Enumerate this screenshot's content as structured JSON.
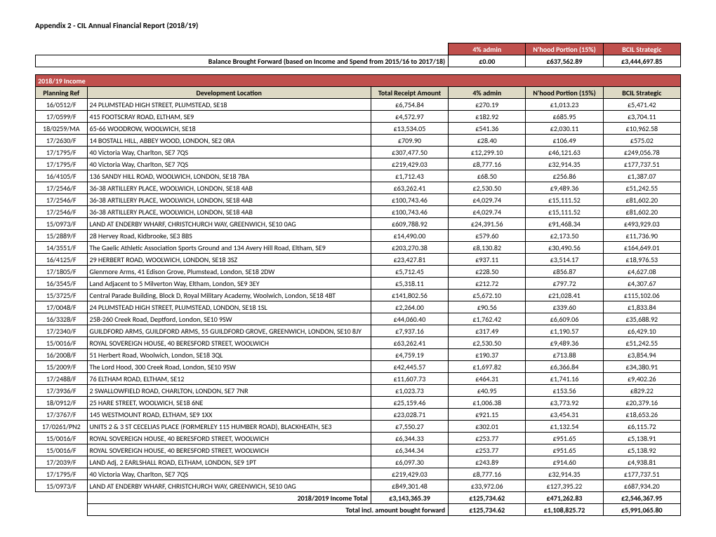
{
  "title": "Appendix 2  - CIL Annual Financial Report (2018/19)",
  "top_headers": {
    "admin": "4% admin",
    "nhood": "N'hood Portion (15%)",
    "bcil": "BCIL Strategic"
  },
  "bbf": {
    "label": "Balance Brought Forward (based on Income and Spend from 2015/16 to 2017/18)",
    "admin": "£0.00",
    "nhood": "£637,562.89",
    "bcil": "£3,444,697.85"
  },
  "section": "2018/19 Income",
  "col_headers": {
    "ref": "Planning Ref",
    "loc": "Development Location",
    "tra": "Total Receipt Amount",
    "admin": "4% admin",
    "nhood": "N'hood Portion (15%)",
    "bcil": "BCIL Strategic"
  },
  "rows": [
    {
      "ref": "16/0512/F",
      "loc": "24 PLUMSTEAD HIGH STREET, PLUMSTEAD, SE18",
      "tra": "£6,754.84",
      "admin": "£270.19",
      "nhood": "£1,013.23",
      "bcil": "£5,471.42"
    },
    {
      "ref": "17/0599/F",
      "loc": "415 FOOTSCRAY ROAD, ELTHAM, SE9",
      "tra": "£4,572.97",
      "admin": "£182.92",
      "nhood": "£685.95",
      "bcil": "£3,704.11"
    },
    {
      "ref": "18/0259/MA",
      "loc": "65-66 WOODROW, WOOLWICH, SE18",
      "tra": "£13,534.05",
      "admin": "£541.36",
      "nhood": "£2,030.11",
      "bcil": "£10,962.58"
    },
    {
      "ref": "17/2630/F",
      "loc": "14 BOSTALL HILL, ABBEY WOOD, LONDON, SE2 0RA",
      "tra": "£709.90",
      "admin": "£28.40",
      "nhood": "£106.49",
      "bcil": "£575.02"
    },
    {
      "ref": "17/1795/F",
      "loc": "40 Victoria Way, Charlton, SE7 7QS",
      "tra": "£307,477.50",
      "admin": "£12,299.10",
      "nhood": "£46,121.63",
      "bcil": "£249,056.78"
    },
    {
      "ref": "17/1795/F",
      "loc": "40 Victoria Way, Charlton, SE7 7QS",
      "tra": "£219,429.03",
      "admin": "£8,777.16",
      "nhood": "£32,914.35",
      "bcil": "£177,737.51"
    },
    {
      "ref": "16/4105/F",
      "loc": "136 SANDY HILL ROAD, WOOLWICH, LONDON, SE18 7BA",
      "tra": "£1,712.43",
      "admin": "£68.50",
      "nhood": "£256.86",
      "bcil": "£1,387.07"
    },
    {
      "ref": "17/2546/F",
      "loc": "36-38 ARTILLERY PLACE, WOOLWICH, LONDON, SE18 4AB",
      "tra": "£63,262.41",
      "admin": "£2,530.50",
      "nhood": "£9,489.36",
      "bcil": "£51,242.55"
    },
    {
      "ref": "17/2546/F",
      "loc": "36-38 ARTILLERY PLACE, WOOLWICH, LONDON, SE18 4AB",
      "tra": "£100,743.46",
      "admin": "£4,029.74",
      "nhood": "£15,111.52",
      "bcil": "£81,602.20"
    },
    {
      "ref": "17/2546/F",
      "loc": "36-38 ARTILLERY PLACE, WOOLWICH, LONDON, SE18 4AB",
      "tra": "£100,743.46",
      "admin": "£4,029.74",
      "nhood": "£15,111.52",
      "bcil": "£81,602.20"
    },
    {
      "ref": "15/0973/F",
      "loc": "LAND AT ENDERBY WHARF, CHRISTCHURCH WAY, GREENWICH, SE10 0AG",
      "tra": "£609,788.92",
      "admin": "£24,391.56",
      "nhood": "£91,468.34",
      "bcil": "£493,929.03"
    },
    {
      "ref": "15/2889/F",
      "loc": "28 Hervey Road, Kidbrooke, SE3 8BS",
      "tra": "£14,490.00",
      "admin": "£579.60",
      "nhood": "£2,173.50",
      "bcil": "£11,736.90"
    },
    {
      "ref": "14/3551/F",
      "loc": "The Gaelic Athletic Association Sports Ground and 134 Avery Hill Road, Eltham, SE9",
      "tra": "£203,270.38",
      "admin": "£8,130.82",
      "nhood": "£30,490.56",
      "bcil": "£164,649.01"
    },
    {
      "ref": "16/4125/F",
      "loc": "29 HERBERT ROAD, WOOLWICH, LONDON, SE18 3SZ",
      "tra": "£23,427.81",
      "admin": "£937.11",
      "nhood": "£3,514.17",
      "bcil": "£18,976.53"
    },
    {
      "ref": "17/1805/F",
      "loc": "Glenmore Arms, 41 Edison Grove, Plumstead, London, SE18 2DW",
      "tra": "£5,712.45",
      "admin": "£228.50",
      "nhood": "£856.87",
      "bcil": "£4,627.08"
    },
    {
      "ref": "16/3545/F",
      "loc": "Land Adjacent to 5 Milverton Way, Eltham, London, SE9 3EY",
      "tra": "£5,318.11",
      "admin": "£212.72",
      "nhood": "£797.72",
      "bcil": "£4,307.67"
    },
    {
      "ref": "15/3725/F",
      "loc": "Central Parade Building, Block D, Royal Military Academy, Woolwich, London, SE18 4BT",
      "tra": "£141,802.56",
      "admin": "£5,672.10",
      "nhood": "£21,028.41",
      "bcil": "£115,102.06"
    },
    {
      "ref": "17/0048/F",
      "loc": "24 PLUMSTEAD HIGH STREET, PLUMSTEAD, LONDON, SE18 1SL",
      "tra": "£2,264.00",
      "admin": "£90.56",
      "nhood": "£339.60",
      "bcil": "£1,833.84"
    },
    {
      "ref": "16/3328/F",
      "loc": "258-260 Creek Road, Deptford, London, SE10 9SW",
      "tra": "£44,060.40",
      "admin": "£1,762.42",
      "nhood": "£6,609.06",
      "bcil": "£35,688.92"
    },
    {
      "ref": "17/2340/F",
      "loc": "GUILDFORD ARMS, GUILDFORD ARMS, 55 GUILDFORD GROVE, GREENWICH, LONDON, SE10 8JY",
      "tra": "£7,937.16",
      "admin": "£317.49",
      "nhood": "£1,190.57",
      "bcil": "£6,429.10"
    },
    {
      "ref": "15/0016/F",
      "loc": "ROYAL SOVEREIGN HOUSE, 40 BERESFORD STREET, WOOLWICH",
      "tra": "£63,262.41",
      "admin": "£2,530.50",
      "nhood": "£9,489.36",
      "bcil": "£51,242.55"
    },
    {
      "ref": "16/2008/F",
      "loc": "51 Herbert Road, Woolwich, London, SE18 3QL",
      "tra": "£4,759.19",
      "admin": "£190.37",
      "nhood": "£713.88",
      "bcil": "£3,854.94"
    },
    {
      "ref": "15/2009/F",
      "loc": "The Lord Hood, 300 Creek Road, London, SE10 9SW",
      "tra": "£42,445.57",
      "admin": "£1,697.82",
      "nhood": "£6,366.84",
      "bcil": "£34,380.91"
    },
    {
      "ref": "17/2488/F",
      "loc": "76 ELTHAM ROAD, ELTHAM, SE12",
      "tra": "£11,607.73",
      "admin": "£464.31",
      "nhood": "£1,741.16",
      "bcil": "£9,402.26"
    },
    {
      "ref": "17/3936/F",
      "loc": "2 SWALLOWFIELD ROAD, CHARLTON, LONDON, SE7 7NR",
      "tra": "£1,023.73",
      "admin": "£40.95",
      "nhood": "£153.56",
      "bcil": "£829.22"
    },
    {
      "ref": "18/0912/F",
      "loc": "25 HARE STREET, WOOLWICH, SE18 6NE",
      "tra": "£25,159.46",
      "admin": "£1,006.38",
      "nhood": "£3,773.92",
      "bcil": "£20,379.16"
    },
    {
      "ref": "17/3767/F",
      "loc": "145 WESTMOUNT ROAD, ELTHAM, SE9 1XX",
      "tra": "£23,028.71",
      "admin": "£921.15",
      "nhood": "£3,454.31",
      "bcil": "£18,653.26"
    },
    {
      "ref": "17/0261/PN2",
      "loc": "UNITS 2 & 3 ST CECELIAS PLACE (FORMERLEY 115 HUMBER ROAD), BLACKHEATH, SE3",
      "tra": "£7,550.27",
      "admin": "£302.01",
      "nhood": "£1,132.54",
      "bcil": "£6,115.72"
    },
    {
      "ref": "15/0016/F",
      "loc": "ROYAL SOVEREIGN HOUSE, 40 BERESFORD STREET, WOOLWICH",
      "tra": "£6,344.33",
      "admin": "£253.77",
      "nhood": "£951.65",
      "bcil": "£5,138.91"
    },
    {
      "ref": "15/0016/F",
      "loc": "ROYAL SOVEREIGN HOUSE, 40 BERESFORD STREET, WOOLWICH",
      "tra": "£6,344.34",
      "admin": "£253.77",
      "nhood": "£951.65",
      "bcil": "£5,138.92"
    },
    {
      "ref": "17/2039/F",
      "loc": "LAND Adj, 2 EARLSHALL ROAD, ELTHAM, LONDON, SE9 1PT",
      "tra": "£6,097.30",
      "admin": "£243.89",
      "nhood": "£914.60",
      "bcil": "£4,938.81"
    },
    {
      "ref": "17/1795/F",
      "loc": "40 Victoria Way, Charlton, SE7 7QS",
      "tra": "£219,429.03",
      "admin": "£8,777.16",
      "nhood": "£32,914.35",
      "bcil": "£177,737.51"
    },
    {
      "ref": "15/0973/F",
      "loc": "LAND AT ENDERBY WHARF, CHRISTCHURCH WAY, GREENWICH, SE10 0AG",
      "tra": "£849,301.48",
      "admin": "£33,972.06",
      "nhood": "£127,395.22",
      "bcil": "£687,934.20"
    }
  ],
  "totals": {
    "income": {
      "label": "2018/2019 Income Total",
      "tra": "£3,143,365.39",
      "admin": "£125,734.62",
      "nhood": "£471,262.83",
      "bcil": "£2,546,367.95"
    },
    "incl": {
      "label": "Total incl. amount bought forward",
      "admin": "£125,734.62",
      "nhood": "£1,108,825.72",
      "bcil": "£5,991,065.80"
    }
  }
}
